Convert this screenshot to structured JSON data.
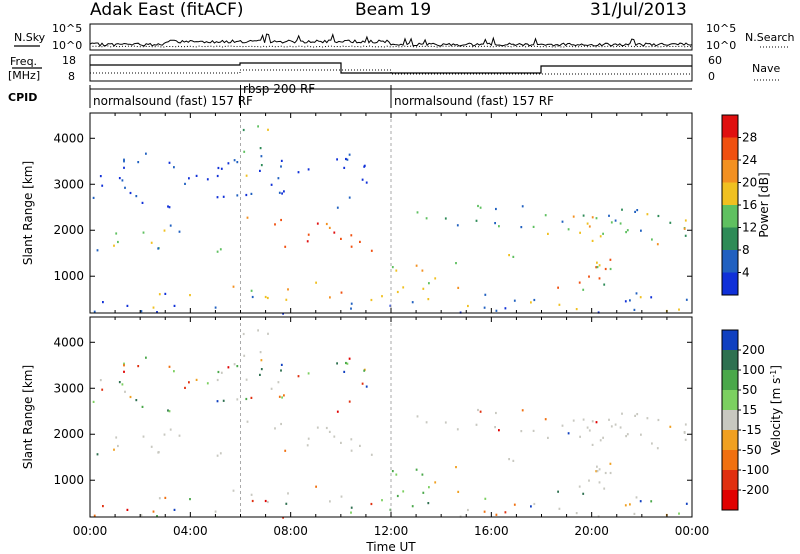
{
  "header": {
    "title": "Adak East (fitACF)",
    "beam": "Beam 19",
    "date": "31/Jul/2013"
  },
  "nsky_panel": {
    "left_label": "N.Sky",
    "right_label": "N.Search",
    "left_ticks": [
      "10^5",
      "10^0"
    ],
    "right_ticks": [
      "10^5",
      "10^0"
    ]
  },
  "freq_panel": {
    "left_label_top": "Freq.",
    "left_label_unit": "[MHz]",
    "right_label": "Nave",
    "left_ticks": [
      "18",
      "8"
    ],
    "right_ticks": [
      "60",
      "0"
    ]
  },
  "cpid_panel": {
    "label": "CPID",
    "programs": [
      {
        "name": "normalsound (fast) 157 RF",
        "start_hour": 0,
        "end_hour": 6
      },
      {
        "name": "rbsp 200 RF",
        "start_hour": 6,
        "end_hour": 12
      },
      {
        "name": "normalsound (fast) 157 RF",
        "start_hour": 12,
        "end_hour": 24
      }
    ]
  },
  "chart_data": [
    {
      "type": "heatmap",
      "name": "power",
      "ylabel": "Slant Range [km]",
      "yticks": [
        1000,
        2000,
        3000,
        4000
      ],
      "ylim": [
        200,
        4550
      ],
      "xlim": [
        0,
        24
      ],
      "colorbar": {
        "label": "Power [dB]",
        "ticks": [
          "4",
          "8",
          "12",
          "16",
          "20",
          "24",
          "28"
        ],
        "colors": [
          "#1030d8",
          "#2060c0",
          "#2e8b57",
          "#5fc060",
          "#f0c020",
          "#f39020",
          "#f05010",
          "#e01010"
        ]
      }
    },
    {
      "type": "heatmap",
      "name": "velocity",
      "ylabel": "Slant Range [km]",
      "yticks": [
        1000,
        2000,
        3000,
        4000
      ],
      "ylim": [
        200,
        4550
      ],
      "xlim": [
        0,
        24
      ],
      "xlabel": "Time UT",
      "xtick_labels": [
        "00:00",
        "04:00",
        "08:00",
        "12:00",
        "16:00",
        "20:00",
        "00:00"
      ],
      "colorbar": {
        "label_main": "Velocity [m s",
        "label_sup": "-1",
        "label_end": "]",
        "ticks": [
          "200",
          "100",
          "50",
          "15",
          "-15",
          "-50",
          "-100",
          "-200"
        ],
        "colors": [
          "#1040c0",
          "#2e7050",
          "#4aa84a",
          "#7cd060",
          "#c8c8c0",
          "#f0a020",
          "#f07010",
          "#e03010",
          "#e00000"
        ]
      }
    }
  ]
}
